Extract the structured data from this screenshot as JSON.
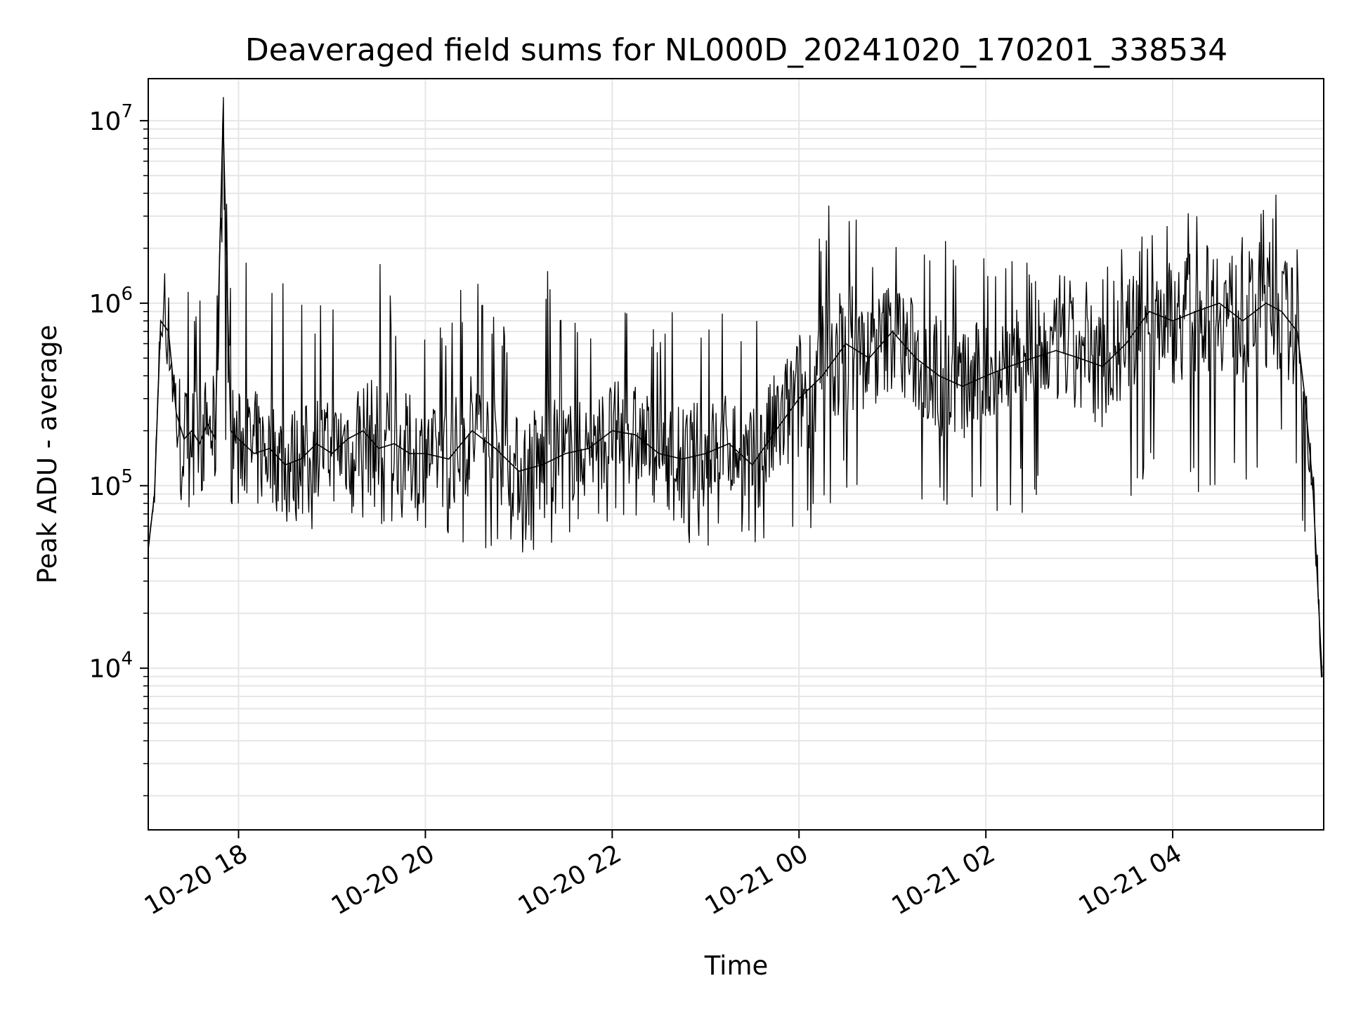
{
  "chart_data": {
    "type": "line",
    "title": "Deaveraged field sums for NL000D_20241020_170201_338534",
    "xlabel": "Time",
    "ylabel": "Peak ADU - average",
    "yscale": "log",
    "grid": true,
    "xlim": [
      "2024-10-20 17:02",
      "2024-10-21 05:37"
    ],
    "ylim": [
      1300,
      17000000
    ],
    "x_ticks": [
      {
        "value": "2024-10-20 18:00",
        "label": "10-20 18"
      },
      {
        "value": "2024-10-20 20:00",
        "label": "10-20 20"
      },
      {
        "value": "2024-10-20 22:00",
        "label": "10-20 22"
      },
      {
        "value": "2024-10-21 00:00",
        "label": "10-21 00"
      },
      {
        "value": "2024-10-21 02:00",
        "label": "10-21 02"
      },
      {
        "value": "2024-10-21 04:00",
        "label": "10-21 04"
      }
    ],
    "y_ticks": [
      {
        "value": 10000,
        "base": "10",
        "exp": "4"
      },
      {
        "value": 100000,
        "base": "10",
        "exp": "5"
      },
      {
        "value": 1000000,
        "base": "10",
        "exp": "6"
      },
      {
        "value": 10000000,
        "base": "10",
        "exp": "7"
      }
    ],
    "series": [
      {
        "color": "#000000",
        "x": [
          "2024-10-20 17:02",
          "2024-10-20 17:06",
          "2024-10-20 17:10",
          "2024-10-20 17:15",
          "2024-10-20 17:20",
          "2024-10-20 17:25",
          "2024-10-20 17:30",
          "2024-10-20 17:35",
          "2024-10-20 17:40",
          "2024-10-20 17:45",
          "2024-10-20 17:50",
          "2024-10-20 17:55",
          "2024-10-20 18:00",
          "2024-10-20 18:10",
          "2024-10-20 18:20",
          "2024-10-20 18:30",
          "2024-10-20 18:40",
          "2024-10-20 18:50",
          "2024-10-20 19:00",
          "2024-10-20 19:10",
          "2024-10-20 19:20",
          "2024-10-20 19:30",
          "2024-10-20 19:40",
          "2024-10-20 19:50",
          "2024-10-20 20:00",
          "2024-10-20 20:15",
          "2024-10-20 20:30",
          "2024-10-20 20:45",
          "2024-10-20 21:00",
          "2024-10-20 21:15",
          "2024-10-20 21:30",
          "2024-10-20 21:45",
          "2024-10-20 22:00",
          "2024-10-20 22:15",
          "2024-10-20 22:30",
          "2024-10-20 22:45",
          "2024-10-20 23:00",
          "2024-10-20 23:15",
          "2024-10-20 23:30",
          "2024-10-20 23:45",
          "2024-10-21 00:00",
          "2024-10-21 00:15",
          "2024-10-21 00:30",
          "2024-10-21 00:45",
          "2024-10-21 01:00",
          "2024-10-21 01:15",
          "2024-10-21 01:30",
          "2024-10-21 01:45",
          "2024-10-21 02:00",
          "2024-10-21 02:15",
          "2024-10-21 02:30",
          "2024-10-21 02:45",
          "2024-10-21 03:00",
          "2024-10-21 03:15",
          "2024-10-21 03:30",
          "2024-10-21 03:45",
          "2024-10-21 04:00",
          "2024-10-21 04:15",
          "2024-10-21 04:30",
          "2024-10-21 04:45",
          "2024-10-21 05:00",
          "2024-10-21 05:10",
          "2024-10-21 05:20",
          "2024-10-21 05:25",
          "2024-10-21 05:30",
          "2024-10-21 05:33",
          "2024-10-21 05:36"
        ],
        "y": [
          45000,
          90000,
          800000,
          700000,
          250000,
          180000,
          200000,
          170000,
          220000,
          180000,
          10500000,
          200000,
          180000,
          150000,
          160000,
          130000,
          140000,
          170000,
          150000,
          180000,
          200000,
          160000,
          170000,
          150000,
          150000,
          140000,
          200000,
          160000,
          120000,
          130000,
          150000,
          160000,
          200000,
          190000,
          150000,
          140000,
          150000,
          170000,
          130000,
          200000,
          300000,
          400000,
          600000,
          500000,
          700000,
          500000,
          400000,
          350000,
          400000,
          450000,
          500000,
          550000,
          500000,
          450000,
          600000,
          900000,
          800000,
          900000,
          1000000,
          800000,
          1000000,
          900000,
          700000,
          300000,
          100000,
          30000,
          9000
        ],
        "y_min": [
          45000,
          55000,
          300000,
          150000,
          80000,
          70000,
          80000,
          70000,
          80000,
          80000,
          80000,
          80000,
          75000,
          70000,
          65000,
          60000,
          60000,
          55000,
          60000,
          55000,
          60000,
          55000,
          60000,
          50000,
          55000,
          50000,
          45000,
          45000,
          40000,
          45000,
          45000,
          50000,
          55000,
          50000,
          45000,
          50000,
          45000,
          45000,
          45000,
          50000,
          55000,
          60000,
          80000,
          90000,
          80000,
          80000,
          70000,
          70000,
          75000,
          70000,
          70000,
          80000,
          60000,
          55000,
          70000,
          90000,
          100000,
          90000,
          100000,
          90000,
          90000,
          120000,
          90000,
          50000,
          25000,
          12000,
          8500
        ],
        "y_max": [
          45000,
          100000,
          1600000,
          1500000,
          2900000,
          1500000,
          1200000,
          1800000,
          1200000,
          2900000,
          10500000,
          1200000,
          1100000,
          2600000,
          1100000,
          2400000,
          1000000,
          1100000,
          1000000,
          2200000,
          1200000,
          2900000,
          1000000,
          1500000,
          800000,
          900000,
          2000000,
          800000,
          900000,
          2200000,
          900000,
          800000,
          1000000,
          900000,
          900000,
          1100000,
          1000000,
          900000,
          1000000,
          1500000,
          2500000,
          3500000,
          4500000,
          2000000,
          2200000,
          2000000,
          2500000,
          1800000,
          2000000,
          2000000,
          1800000,
          1600000,
          2000000,
          1700000,
          2100000,
          2800000,
          3500000,
          3000000,
          4300000,
          3200000,
          4300000,
          3900000,
          2800000,
          400000,
          130000,
          70000,
          20000
        ]
      }
    ]
  }
}
